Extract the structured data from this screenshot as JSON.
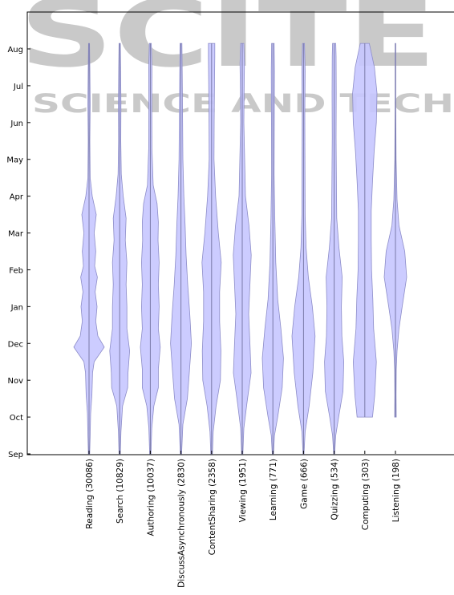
{
  "watermark": {
    "line1": "SCITE",
    "line2": "SCIENCE AND TECH"
  },
  "chart_data": {
    "type": "violin",
    "orientation": "vertical",
    "title": "",
    "xlabel": "",
    "ylabel": "",
    "y_ticks": [
      "Sep",
      "Oct",
      "Nov",
      "Dec",
      "Jan",
      "Feb",
      "Mar",
      "Apr",
      "May",
      "Jun",
      "Jul",
      "Aug"
    ],
    "ylim": [
      "Sep",
      "Aug"
    ],
    "grid": false,
    "fill_color": "#c6c6ff",
    "edge_color": "#8c8cc8",
    "categories": [
      {
        "label": "Reading (30086)",
        "range": [
          0.0,
          11.15
        ],
        "density": [
          [
            0,
            0.04
          ],
          [
            0.5,
            0.07
          ],
          [
            1.1,
            0.1
          ],
          [
            1.6,
            0.18
          ],
          [
            2.2,
            0.22
          ],
          [
            2.5,
            0.32
          ],
          [
            2.9,
            0.95
          ],
          [
            3.2,
            0.55
          ],
          [
            3.6,
            0.42
          ],
          [
            4.0,
            0.5
          ],
          [
            4.4,
            0.38
          ],
          [
            4.8,
            0.52
          ],
          [
            5.1,
            0.35
          ],
          [
            5.5,
            0.42
          ],
          [
            6.0,
            0.32
          ],
          [
            6.5,
            0.45
          ],
          [
            7.0,
            0.2
          ],
          [
            7.5,
            0.07
          ],
          [
            8.5,
            0.05
          ],
          [
            9.5,
            0.07
          ],
          [
            10.5,
            0.05
          ],
          [
            11.15,
            0.03
          ]
        ]
      },
      {
        "label": "Search (10829)",
        "range": [
          0.0,
          11.15
        ],
        "density": [
          [
            0,
            0.04
          ],
          [
            0.6,
            0.08
          ],
          [
            1.3,
            0.18
          ],
          [
            1.8,
            0.5
          ],
          [
            2.2,
            0.52
          ],
          [
            2.8,
            0.62
          ],
          [
            3.4,
            0.45
          ],
          [
            4.0,
            0.45
          ],
          [
            4.6,
            0.4
          ],
          [
            5.2,
            0.45
          ],
          [
            5.8,
            0.35
          ],
          [
            6.4,
            0.4
          ],
          [
            7.0,
            0.22
          ],
          [
            7.6,
            0.1
          ],
          [
            8.5,
            0.07
          ],
          [
            9.5,
            0.08
          ],
          [
            10.5,
            0.06
          ],
          [
            11.15,
            0.04
          ]
        ]
      },
      {
        "label": "Authoring (10037)",
        "range": [
          0.0,
          11.15
        ],
        "density": [
          [
            0,
            0.04
          ],
          [
            0.7,
            0.09
          ],
          [
            1.3,
            0.22
          ],
          [
            1.8,
            0.5
          ],
          [
            2.3,
            0.5
          ],
          [
            2.9,
            0.62
          ],
          [
            3.4,
            0.5
          ],
          [
            4.0,
            0.55
          ],
          [
            4.6,
            0.5
          ],
          [
            5.2,
            0.55
          ],
          [
            5.8,
            0.48
          ],
          [
            6.3,
            0.5
          ],
          [
            6.8,
            0.42
          ],
          [
            7.3,
            0.18
          ],
          [
            8.3,
            0.1
          ],
          [
            9.5,
            0.09
          ],
          [
            10.5,
            0.1
          ],
          [
            11.15,
            0.06
          ]
        ]
      },
      {
        "label": "DiscussAsynchronously (2830)",
        "range": [
          0.0,
          11.15
        ],
        "density": [
          [
            0,
            0.04
          ],
          [
            0.8,
            0.12
          ],
          [
            1.5,
            0.4
          ],
          [
            2.2,
            0.52
          ],
          [
            3.0,
            0.65
          ],
          [
            3.8,
            0.55
          ],
          [
            4.6,
            0.42
          ],
          [
            5.4,
            0.32
          ],
          [
            6.2,
            0.26
          ],
          [
            7.0,
            0.18
          ],
          [
            8.0,
            0.12
          ],
          [
            9.2,
            0.1
          ],
          [
            10.3,
            0.08
          ],
          [
            11.15,
            0.06
          ]
        ]
      },
      {
        "label": "ContentSharing (2358)",
        "range": [
          0.0,
          11.15
        ],
        "density": [
          [
            0,
            0.05
          ],
          [
            0.6,
            0.1
          ],
          [
            1.3,
            0.28
          ],
          [
            2.0,
            0.55
          ],
          [
            2.8,
            0.58
          ],
          [
            3.6,
            0.5
          ],
          [
            4.4,
            0.5
          ],
          [
            5.2,
            0.6
          ],
          [
            6.0,
            0.42
          ],
          [
            7.0,
            0.25
          ],
          [
            8.0,
            0.15
          ],
          [
            9.0,
            0.16
          ],
          [
            10.0,
            0.18
          ],
          [
            10.8,
            0.2
          ],
          [
            11.15,
            0.2
          ]
        ]
      },
      {
        "label": "Viewing (1951)",
        "range": [
          0.0,
          11.15
        ],
        "density": [
          [
            0,
            0.04
          ],
          [
            0.7,
            0.1
          ],
          [
            1.4,
            0.3
          ],
          [
            2.2,
            0.55
          ],
          [
            3.0,
            0.48
          ],
          [
            3.8,
            0.4
          ],
          [
            4.6,
            0.48
          ],
          [
            5.4,
            0.56
          ],
          [
            6.2,
            0.42
          ],
          [
            7.0,
            0.2
          ],
          [
            8.0,
            0.15
          ],
          [
            9.0,
            0.1
          ],
          [
            10.0,
            0.12
          ],
          [
            10.6,
            0.14
          ],
          [
            11.15,
            0.1
          ]
        ]
      },
      {
        "label": "Learning (771)",
        "range": [
          0.0,
          11.15
        ],
        "density": [
          [
            0,
            0.04
          ],
          [
            0.5,
            0.1
          ],
          [
            1.0,
            0.3
          ],
          [
            1.8,
            0.58
          ],
          [
            2.6,
            0.66
          ],
          [
            3.4,
            0.5
          ],
          [
            4.2,
            0.3
          ],
          [
            5.2,
            0.18
          ],
          [
            6.4,
            0.12
          ],
          [
            7.6,
            0.08
          ],
          [
            9.0,
            0.09
          ],
          [
            10.4,
            0.1
          ],
          [
            11.15,
            0.08
          ]
        ]
      },
      {
        "label": "Game (666)",
        "range": [
          0.0,
          11.15
        ],
        "density": [
          [
            0,
            0.03
          ],
          [
            0.6,
            0.1
          ],
          [
            1.3,
            0.35
          ],
          [
            2.2,
            0.58
          ],
          [
            3.2,
            0.72
          ],
          [
            4.0,
            0.55
          ],
          [
            4.8,
            0.3
          ],
          [
            5.6,
            0.16
          ],
          [
            6.5,
            0.1
          ],
          [
            7.8,
            0.09
          ],
          [
            9.2,
            0.08
          ],
          [
            10.4,
            0.1
          ],
          [
            11.15,
            0.06
          ]
        ]
      },
      {
        "label": "Quizzing (534)",
        "range": [
          0.0,
          11.15
        ],
        "density": [
          [
            0,
            0.03
          ],
          [
            0.5,
            0.1
          ],
          [
            1.0,
            0.28
          ],
          [
            1.7,
            0.55
          ],
          [
            2.5,
            0.6
          ],
          [
            3.2,
            0.48
          ],
          [
            4.0,
            0.45
          ],
          [
            4.8,
            0.5
          ],
          [
            5.6,
            0.3
          ],
          [
            6.4,
            0.16
          ],
          [
            7.4,
            0.14
          ],
          [
            8.6,
            0.12
          ],
          [
            9.8,
            0.13
          ],
          [
            10.8,
            0.12
          ],
          [
            11.15,
            0.1
          ]
        ]
      },
      {
        "label": "Computing (303)",
        "range": [
          1.0,
          11.15
        ],
        "density": [
          [
            1.0,
            0.48
          ],
          [
            1.6,
            0.62
          ],
          [
            2.5,
            0.72
          ],
          [
            3.4,
            0.55
          ],
          [
            4.2,
            0.5
          ],
          [
            5.0,
            0.42
          ],
          [
            5.8,
            0.4
          ],
          [
            6.6,
            0.4
          ],
          [
            7.4,
            0.48
          ],
          [
            8.2,
            0.58
          ],
          [
            9.0,
            0.72
          ],
          [
            9.8,
            0.76
          ],
          [
            10.5,
            0.6
          ],
          [
            11.15,
            0.28
          ]
        ]
      },
      {
        "label": "Listening (198)",
        "range": [
          1.0,
          11.15
        ],
        "density": [
          [
            1.0,
            0.05
          ],
          [
            1.6,
            0.04
          ],
          [
            2.3,
            0.05
          ],
          [
            2.8,
            0.1
          ],
          [
            3.4,
            0.22
          ],
          [
            4.0,
            0.42
          ],
          [
            4.8,
            0.7
          ],
          [
            5.5,
            0.58
          ],
          [
            6.2,
            0.22
          ],
          [
            6.9,
            0.1
          ],
          [
            8.0,
            0.04
          ],
          [
            9.5,
            0.02
          ],
          [
            11.15,
            0.02
          ]
        ]
      }
    ]
  }
}
